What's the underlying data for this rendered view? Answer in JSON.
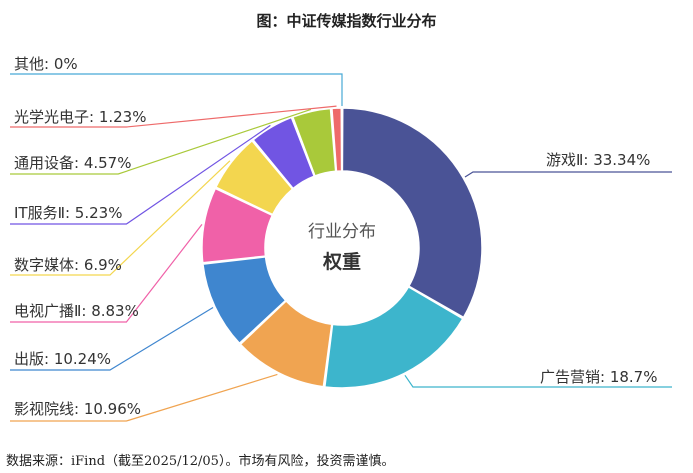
{
  "chart_data": {
    "type": "pie",
    "title": "图：中证传媒指数行业分布",
    "center_label": "行业分布",
    "center_value": "权重",
    "source": "数据来源：iFind（截至2025/12/05）。市场有风险，投资需谨慎。",
    "slices": [
      {
        "name": "游戏Ⅱ",
        "value": 33.34,
        "label": "游戏Ⅱ: 33.34%",
        "color": "#4a5396"
      },
      {
        "name": "广告营销",
        "value": 18.7,
        "label": "广告营销: 18.7%",
        "color": "#3db5cc"
      },
      {
        "name": "影视院线",
        "value": 10.96,
        "label": "影视院线: 10.96%",
        "color": "#f0a451"
      },
      {
        "name": "出版",
        "value": 10.24,
        "label": "出版: 10.24%",
        "color": "#3f86cf"
      },
      {
        "name": "电视广播Ⅱ",
        "value": 8.83,
        "label": "电视广播Ⅱ: 8.83%",
        "color": "#f061a8"
      },
      {
        "name": "数字媒体",
        "value": 6.9,
        "label": "数字媒体: 6.9%",
        "color": "#f3d64f"
      },
      {
        "name": "IT服务Ⅱ",
        "value": 5.23,
        "label": "IT服务Ⅱ: 5.23%",
        "color": "#7155e3"
      },
      {
        "name": "通用设备",
        "value": 4.57,
        "label": "通用设备: 4.57%",
        "color": "#a9c93a"
      },
      {
        "name": "光学光电子",
        "value": 1.23,
        "label": "光学光电子: 1.23%",
        "color": "#ee6a6a"
      },
      {
        "name": "其他",
        "value": 0,
        "label": "其他: 0%",
        "color": "#48a9d6"
      }
    ]
  }
}
